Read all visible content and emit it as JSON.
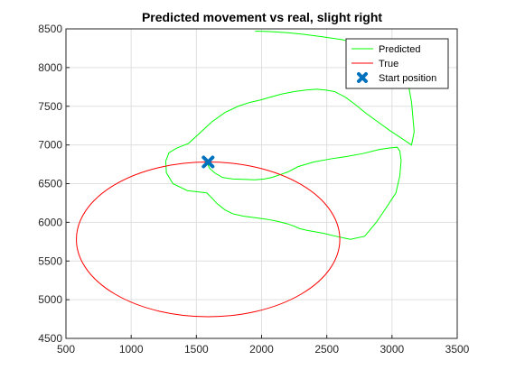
{
  "chart_data": {
    "type": "line",
    "title": "Predicted movement vs real, slight right",
    "xlim": [
      500,
      3500
    ],
    "ylim": [
      4500,
      8500
    ],
    "xticks": [
      500,
      1000,
      1500,
      2000,
      2500,
      3000,
      3500
    ],
    "yticks": [
      4500,
      5000,
      5500,
      6000,
      6500,
      7000,
      7500,
      8000,
      8500
    ],
    "xtick_labels": [
      "500",
      "1000",
      "1500",
      "2000",
      "2500",
      "3000",
      "3500"
    ],
    "ytick_labels": [
      "4500",
      "5000",
      "5500",
      "6000",
      "6500",
      "7000",
      "7500",
      "8000",
      "8500"
    ],
    "grid": true,
    "legend_position": "top-right",
    "legend": [
      "Predicted",
      "True",
      "Start position"
    ],
    "series": [
      {
        "name": "Predicted",
        "color": "#00ff00",
        "x": [
          1580,
          1600,
          1640,
          1700,
          1780,
          1860,
          1950,
          2020,
          2080,
          2150,
          2200,
          2280,
          2400,
          2530,
          2650,
          2780,
          2900,
          2980,
          3040,
          3060,
          3070,
          3060,
          3030,
          2960,
          2880,
          2790,
          2680,
          2570,
          2470,
          2400,
          2340,
          2290,
          2250,
          2200,
          2130,
          2040,
          1950,
          1860,
          1780,
          1720,
          1660,
          1610,
          1580
        ],
        "y": [
          6780,
          6700,
          6640,
          6580,
          6560,
          6555,
          6550,
          6560,
          6580,
          6620,
          6650,
          6720,
          6780,
          6820,
          6850,
          6890,
          6940,
          6960,
          6970,
          6920,
          6800,
          6600,
          6380,
          6200,
          6000,
          5820,
          5780,
          5820,
          5860,
          5880,
          5900,
          5920,
          5950,
          5980,
          6010,
          6040,
          6060,
          6080,
          6110,
          6160,
          6240,
          6330,
          6380
        ],
        "x2": [
          1580,
          1430,
          1320,
          1270,
          1265,
          1290,
          1350,
          1440,
          1530,
          1620,
          1720,
          1820,
          1910,
          1990,
          2070,
          2160,
          2250,
          2340,
          2420,
          2490,
          2560,
          2640,
          2720,
          2800,
          2890,
          2980,
          3070,
          3150,
          3170,
          3160,
          3150,
          3130,
          3100,
          3030,
          2920,
          2780,
          2620,
          2460,
          2320,
          2200,
          2110,
          2060,
          2020,
          1980,
          1950
        ],
        "y2": [
          6380,
          6410,
          6500,
          6640,
          6790,
          6900,
          6960,
          7020,
          7160,
          7300,
          7420,
          7500,
          7550,
          7580,
          7620,
          7660,
          7690,
          7710,
          7720,
          7710,
          7690,
          7620,
          7520,
          7410,
          7300,
          7190,
          7090,
          7000,
          7170,
          7360,
          7550,
          7740,
          7900,
          8060,
          8200,
          8290,
          8360,
          8400,
          8430,
          8450,
          8460,
          8465,
          8468,
          8470,
          8470
        ]
      },
      {
        "name": "True",
        "color": "#ff0000",
        "shape": "ellipse",
        "center": [
          1590,
          5780
        ],
        "semi_axis_x": 1010,
        "semi_axis_y": 1000
      }
    ],
    "markers": [
      {
        "name": "Start position",
        "x": 1590,
        "y": 6780,
        "color": "#0072bd",
        "symbol": "X"
      }
    ]
  }
}
